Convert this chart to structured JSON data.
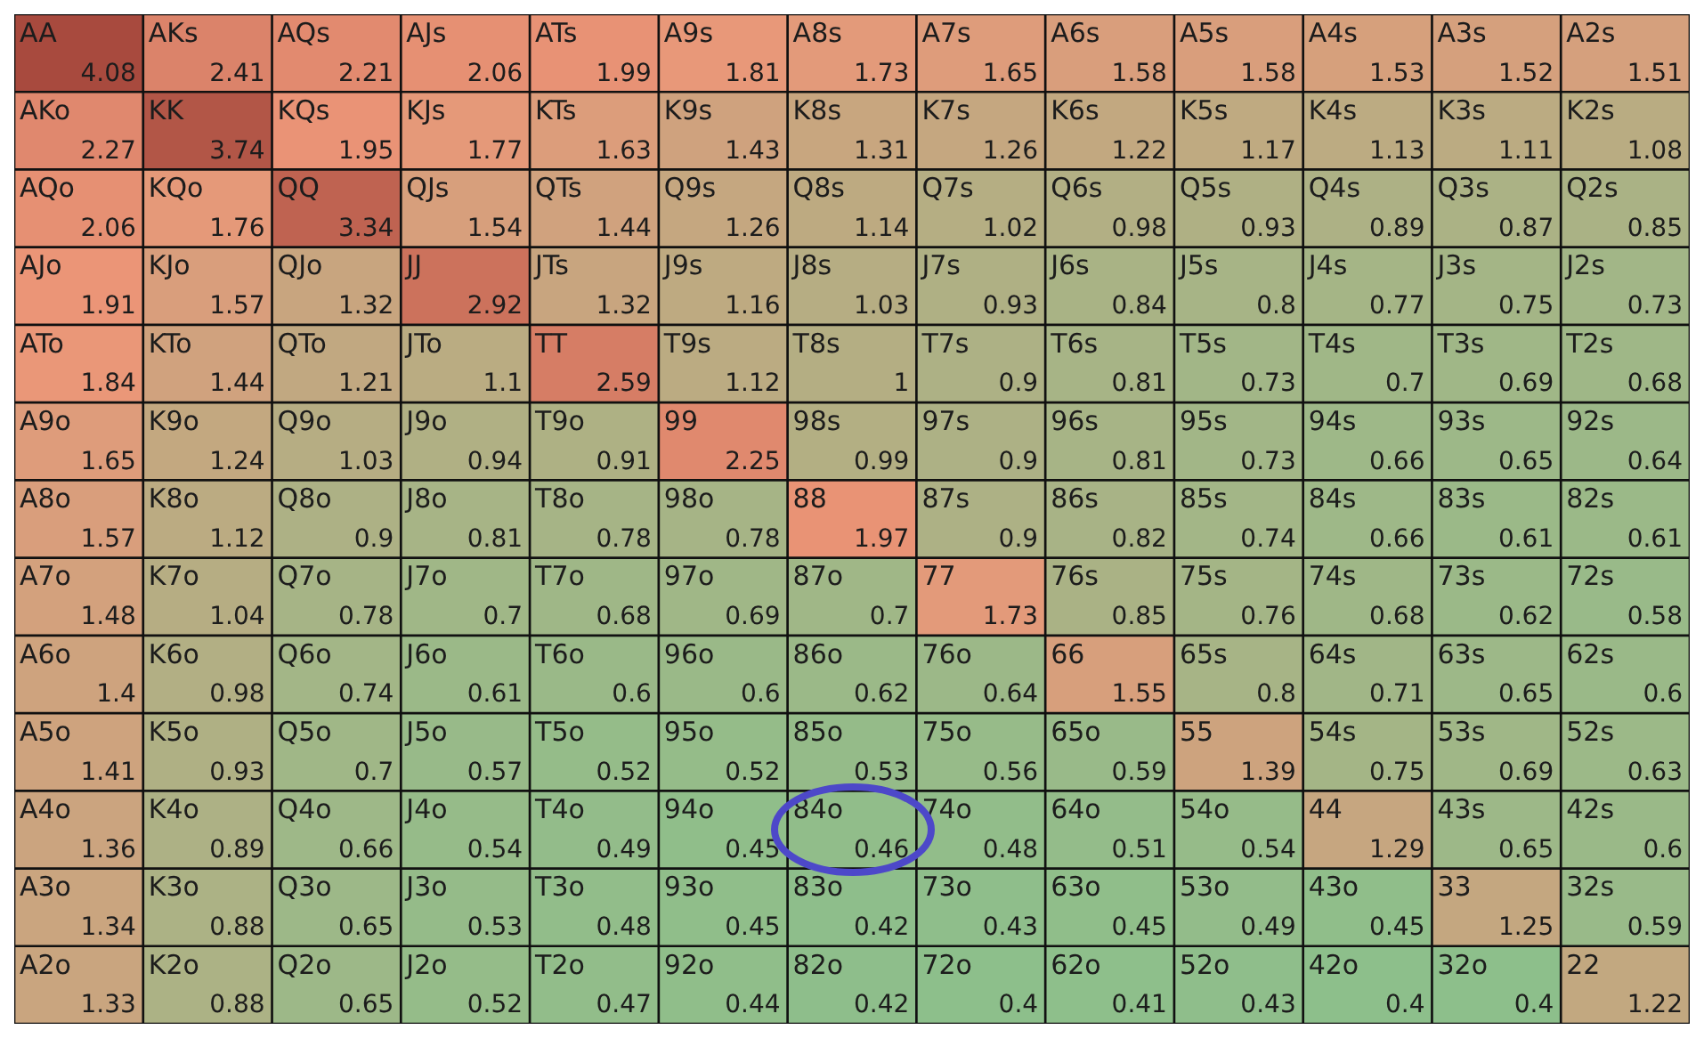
{
  "chart_data": {
    "type": "heatmap",
    "categories": [
      null,
      null,
      null,
      null,
      null,
      null,
      null,
      null,
      null,
      null,
      null,
      null,
      null
    ],
    "y_categories": [
      null,
      null,
      null,
      null,
      null,
      null,
      null,
      null,
      null,
      null,
      null,
      null,
      null
    ],
    "data_labels": true,
    "cells": [
      [
        4.08,
        2.41,
        2.21,
        2.06,
        1.99,
        1.81,
        1.73,
        1.65,
        1.58,
        1.58,
        1.53,
        1.52,
        1.51
      ],
      [
        2.27,
        3.74,
        1.95,
        1.77,
        1.63,
        1.43,
        1.31,
        1.26,
        1.22,
        1.17,
        1.13,
        1.11,
        1.08
      ],
      [
        2.06,
        1.76,
        3.34,
        1.54,
        1.44,
        1.26,
        1.14,
        1.02,
        0.98,
        0.93,
        0.89,
        0.87,
        0.85
      ],
      [
        1.91,
        1.57,
        1.32,
        2.92,
        1.32,
        1.16,
        1.03,
        0.93,
        0.84,
        0.8,
        0.77,
        0.75,
        0.73
      ],
      [
        1.84,
        1.44,
        1.21,
        1.1,
        2.59,
        1.12,
        1,
        0.9,
        0.81,
        0.73,
        0.7,
        0.69,
        0.68
      ],
      [
        1.65,
        1.24,
        1.03,
        0.94,
        0.91,
        2.25,
        0.99,
        0.9,
        0.81,
        0.73,
        0.66,
        0.65,
        0.64
      ],
      [
        1.57,
        1.12,
        0.9,
        0.81,
        0.78,
        0.78,
        1.97,
        0.9,
        0.82,
        0.74,
        0.66,
        0.61,
        0.61
      ],
      [
        1.48,
        1.04,
        0.78,
        0.7,
        0.68,
        0.69,
        0.7,
        1.73,
        0.85,
        0.76,
        0.68,
        0.62,
        0.58
      ],
      [
        1.4,
        0.98,
        0.74,
        0.61,
        0.6,
        0.6,
        0.62,
        0.64,
        1.55,
        0.8,
        0.71,
        0.65,
        0.6
      ],
      [
        1.41,
        0.93,
        0.7,
        0.57,
        0.52,
        0.52,
        0.53,
        0.56,
        0.59,
        1.39,
        0.75,
        0.69,
        0.63
      ],
      [
        1.36,
        0.89,
        0.66,
        0.54,
        0.49,
        0.45,
        0.46,
        0.48,
        0.51,
        0.54,
        1.29,
        0.65,
        0.6
      ],
      [
        1.34,
        0.88,
        0.65,
        0.53,
        0.48,
        0.45,
        0.42,
        0.43,
        0.45,
        0.49,
        0.45,
        1.25,
        0.59
      ],
      [
        1.33,
        0.88,
        0.65,
        0.52,
        0.47,
        0.44,
        0.42,
        0.4,
        0.41,
        0.43,
        0.4,
        0.4,
        1.22
      ]
    ],
    "annotations": [
      "AA",
      "AKs",
      "AQs",
      "AJs",
      "ATs",
      "A9s",
      "A8s",
      "A7s",
      "A6s",
      "A5s",
      "A4s",
      "A3s",
      "A2s",
      "AKo",
      "KK",
      "KQs",
      "KJs",
      "KTs",
      "K9s",
      "K8s",
      "K7s",
      "K6s",
      "K5s",
      "K4s",
      "K3s",
      "K2s",
      "AQo",
      "KQo",
      "QQ",
      "QJs",
      "QTs",
      "Q9s",
      "Q8s",
      "Q7s",
      "Q6s",
      "Q5s",
      "Q4s",
      "Q3s",
      "Q2s",
      "AJo",
      "KJo",
      "QJo",
      "JJ",
      "JTs",
      "J9s",
      "J8s",
      "J7s",
      "J6s",
      "J5s",
      "J4s",
      "J3s",
      "J2s",
      "ATo",
      "KTo",
      "QTo",
      "JTo",
      "TT",
      "T9s",
      "T8s",
      "T7s",
      "T6s",
      "T5s",
      "T4s",
      "T3s",
      "T2s",
      "A9o",
      "K9o",
      "Q9o",
      "J9o",
      "T9o",
      "99",
      "98s",
      "97s",
      "96s",
      "95s",
      "94s",
      "93s",
      "92s",
      "A8o",
      "K8o",
      "Q8o",
      "J8o",
      "T8o",
      "98o",
      "88",
      "87s",
      "86s",
      "85s",
      "84s",
      "83s",
      "82s",
      "A7o",
      "K7o",
      "Q7o",
      "J7o",
      "T7o",
      "97o",
      "87o",
      "77",
      "76s",
      "75s",
      "74s",
      "73s",
      "72s",
      "A6o",
      "K6o",
      "Q6o",
      "J6o",
      "T6o",
      "96o",
      "86o",
      "76o",
      "66",
      "65s",
      "64s",
      "63s",
      "62s",
      "A5o",
      "K5o",
      "Q5o",
      "J5o",
      "T5o",
      "95o",
      "85o",
      "75o",
      "65o",
      "55",
      "54s",
      "53s",
      "52s",
      "A4o",
      "K4o",
      "Q4o",
      "J4o",
      "T4o",
      "94o",
      "84o",
      "74o",
      "64o",
      "54o",
      "44",
      "43s",
      "42s",
      "A3o",
      "K3o",
      "Q3o",
      "J3o",
      "T3o",
      "93o",
      "83o",
      "73o",
      "63o",
      "53o",
      "43o",
      "33",
      "32s",
      "A2o",
      "K2o",
      "Q2o",
      "J2o",
      "T2o",
      "92o",
      "82o",
      "72o",
      "62o",
      "52o",
      "42o",
      "32o",
      "22"
    ]
  }
}
